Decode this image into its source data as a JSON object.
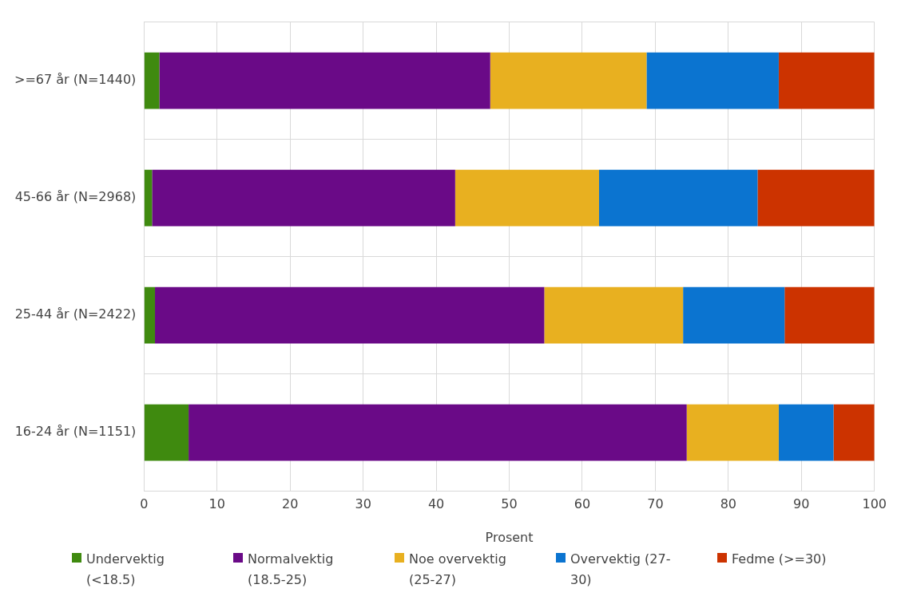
{
  "chart_data": {
    "type": "bar",
    "orientation": "horizontal",
    "stacked": true,
    "xlabel": "Prosent",
    "categories": [
      ">=67 år (N=1440)",
      "45-66 år (N=2968)",
      "25-44 år (N=2422)",
      "16-24 år (N=1151)"
    ],
    "series": [
      {
        "name": "Undervektig (<18.5)",
        "color": "#3f8a0f",
        "values": [
          2.1,
          1.1,
          1.5,
          6.1
        ]
      },
      {
        "name": "Normalvektig (18.5-25)",
        "color": "#6a0a87",
        "values": [
          45.3,
          41.5,
          53.3,
          68.2
        ]
      },
      {
        "name": "Noe overvektig (25-27)",
        "color": "#e8b020",
        "values": [
          21.4,
          19.7,
          19.0,
          12.6
        ]
      },
      {
        "name": "Overvektig (27-30)",
        "color": "#0b74d0",
        "values": [
          18.1,
          21.7,
          13.9,
          7.5
        ]
      },
      {
        "name": "Fedme (>=30)",
        "color": "#cc3300",
        "values": [
          13.1,
          16.0,
          12.3,
          5.6
        ]
      }
    ],
    "xlim": [
      0,
      100
    ],
    "xticks": [
      0,
      10,
      20,
      30,
      40,
      50,
      60,
      70,
      80,
      90,
      100
    ],
    "grid": true,
    "legend": "bottom"
  }
}
